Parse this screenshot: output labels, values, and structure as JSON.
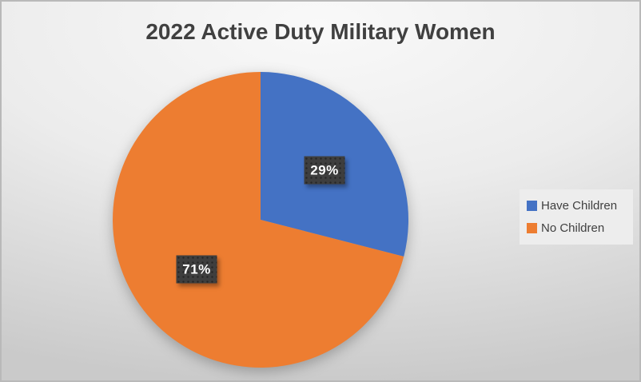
{
  "chart_data": {
    "type": "pie",
    "title": "2022 Active Duty Military Women",
    "categories": [
      "Have Children",
      "No Children"
    ],
    "values": [
      29,
      71
    ],
    "data_labels": [
      "29%",
      "71%"
    ],
    "slice_colors": [
      "#4472C4",
      "#ED7D31"
    ],
    "start_angle_deg": 0,
    "direction": "clockwise",
    "legend_position": "right",
    "grid": "off"
  },
  "legend": {
    "items": [
      {
        "label": "Have Children",
        "color": "#4472C4"
      },
      {
        "label": "No Children",
        "color": "#ED7D31"
      }
    ]
  },
  "colors": {
    "title_text": "#404040",
    "legend_text": "#404040",
    "legend_background": "#EDEDED",
    "label_background": "#3E3E3E",
    "label_text": "#FFFFFF",
    "slide_edge": "#B9B9B9"
  }
}
